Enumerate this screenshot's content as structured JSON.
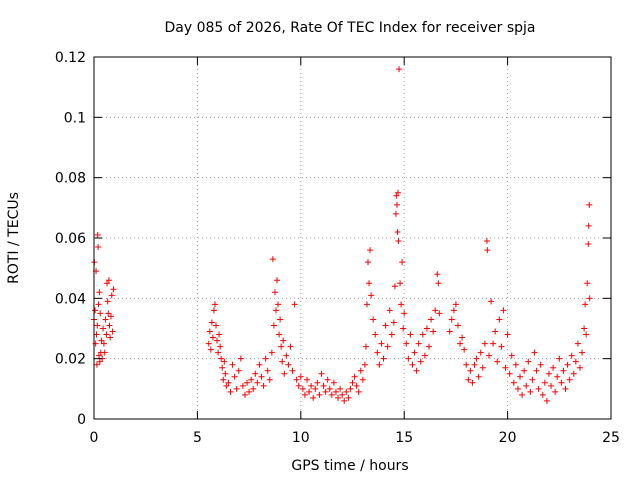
{
  "chart_data": {
    "type": "scatter",
    "title": "Day 085 of 2026, Rate Of TEC Index for receiver spja",
    "xlabel": "GPS time / hours",
    "ylabel": "ROTI / TECUs",
    "xlim": [
      0,
      25
    ],
    "ylim": [
      0,
      0.12
    ],
    "x_ticks": [
      0,
      5,
      10,
      15,
      20,
      25
    ],
    "x_tick_labels": [
      "0",
      "5",
      "10",
      "15",
      "20",
      "25"
    ],
    "y_ticks": [
      0,
      0.02,
      0.04,
      0.06,
      0.08,
      0.1,
      0.12
    ],
    "y_tick_labels": [
      "0",
      "0.02",
      "0.04",
      "0.06",
      "0.08",
      "0.1",
      "0.12"
    ],
    "grid": true,
    "marker": "plus",
    "series_color": "#ff0000",
    "series": [
      {
        "name": "ROTI",
        "points": [
          [
            0.0,
            0.033
          ],
          [
            0.02,
            0.052
          ],
          [
            0.05,
            0.036
          ],
          [
            0.08,
            0.025
          ],
          [
            0.1,
            0.049
          ],
          [
            0.12,
            0.028
          ],
          [
            0.14,
            0.018
          ],
          [
            0.16,
            0.031
          ],
          [
            0.18,
            0.061
          ],
          [
            0.2,
            0.057
          ],
          [
            0.22,
            0.038
          ],
          [
            0.24,
            0.021
          ],
          [
            0.26,
            0.042
          ],
          [
            0.28,
            0.019
          ],
          [
            0.3,
            0.035
          ],
          [
            0.33,
            0.022
          ],
          [
            0.36,
            0.026
          ],
          [
            0.4,
            0.02
          ],
          [
            0.44,
            0.03
          ],
          [
            0.48,
            0.025
          ],
          [
            0.52,
            0.022
          ],
          [
            0.56,
            0.033
          ],
          [
            0.6,
            0.028
          ],
          [
            0.63,
            0.045
          ],
          [
            0.66,
            0.039
          ],
          [
            0.69,
            0.035
          ],
          [
            0.72,
            0.046
          ],
          [
            0.75,
            0.031
          ],
          [
            0.78,
            0.027
          ],
          [
            0.82,
            0.034
          ],
          [
            0.86,
            0.041
          ],
          [
            0.9,
            0.029
          ],
          [
            0.94,
            0.043
          ],
          [
            5.55,
            0.025
          ],
          [
            5.6,
            0.029
          ],
          [
            5.65,
            0.023
          ],
          [
            5.7,
            0.032
          ],
          [
            5.75,
            0.027
          ],
          [
            5.8,
            0.036
          ],
          [
            5.85,
            0.038
          ],
          [
            5.9,
            0.031
          ],
          [
            5.95,
            0.026
          ],
          [
            6.0,
            0.022
          ],
          [
            6.05,
            0.028
          ],
          [
            6.1,
            0.024
          ],
          [
            6.15,
            0.02
          ],
          [
            6.2,
            0.017
          ],
          [
            6.25,
            0.013
          ],
          [
            6.3,
            0.019
          ],
          [
            6.35,
            0.015
          ],
          [
            6.4,
            0.011
          ],
          [
            6.5,
            0.012
          ],
          [
            6.6,
            0.009
          ],
          [
            6.7,
            0.018
          ],
          [
            6.8,
            0.014
          ],
          [
            6.9,
            0.01
          ],
          [
            7.0,
            0.016
          ],
          [
            7.1,
            0.02
          ],
          [
            7.2,
            0.011
          ],
          [
            7.3,
            0.008
          ],
          [
            7.4,
            0.012
          ],
          [
            7.5,
            0.009
          ],
          [
            7.6,
            0.013
          ],
          [
            7.7,
            0.01
          ],
          [
            7.8,
            0.015
          ],
          [
            7.9,
            0.012
          ],
          [
            8.0,
            0.018
          ],
          [
            8.1,
            0.014
          ],
          [
            8.2,
            0.011
          ],
          [
            8.3,
            0.02
          ],
          [
            8.4,
            0.016
          ],
          [
            8.5,
            0.013
          ],
          [
            8.6,
            0.022
          ],
          [
            8.65,
            0.053
          ],
          [
            8.7,
            0.031
          ],
          [
            8.75,
            0.042
          ],
          [
            8.8,
            0.036
          ],
          [
            8.85,
            0.046
          ],
          [
            8.9,
            0.038
          ],
          [
            8.95,
            0.028
          ],
          [
            9.0,
            0.033
          ],
          [
            9.05,
            0.024
          ],
          [
            9.1,
            0.019
          ],
          [
            9.15,
            0.026
          ],
          [
            9.2,
            0.015
          ],
          [
            9.3,
            0.021
          ],
          [
            9.4,
            0.018
          ],
          [
            9.5,
            0.024
          ],
          [
            9.6,
            0.016
          ],
          [
            9.7,
            0.038
          ],
          [
            9.8,
            0.013
          ],
          [
            9.9,
            0.011
          ],
          [
            10.0,
            0.014
          ],
          [
            10.1,
            0.01
          ],
          [
            10.2,
            0.008
          ],
          [
            10.3,
            0.013
          ],
          [
            10.4,
            0.009
          ],
          [
            10.5,
            0.011
          ],
          [
            10.6,
            0.007
          ],
          [
            10.7,
            0.01
          ],
          [
            10.8,
            0.012
          ],
          [
            10.9,
            0.008
          ],
          [
            11.0,
            0.015
          ],
          [
            11.1,
            0.011
          ],
          [
            11.2,
            0.009
          ],
          [
            11.3,
            0.013
          ],
          [
            11.4,
            0.01
          ],
          [
            11.5,
            0.008
          ],
          [
            11.6,
            0.012
          ],
          [
            11.7,
            0.009
          ],
          [
            11.8,
            0.007
          ],
          [
            11.9,
            0.01
          ],
          [
            12.0,
            0.008
          ],
          [
            12.1,
            0.006
          ],
          [
            12.2,
            0.009
          ],
          [
            12.3,
            0.007
          ],
          [
            12.4,
            0.01
          ],
          [
            12.5,
            0.012
          ],
          [
            12.6,
            0.014
          ],
          [
            12.7,
            0.011
          ],
          [
            12.8,
            0.009
          ],
          [
            12.9,
            0.016
          ],
          [
            13.0,
            0.013
          ],
          [
            13.1,
            0.018
          ],
          [
            13.15,
            0.024
          ],
          [
            13.2,
            0.038
          ],
          [
            13.25,
            0.052
          ],
          [
            13.3,
            0.045
          ],
          [
            13.35,
            0.056
          ],
          [
            13.4,
            0.041
          ],
          [
            13.5,
            0.033
          ],
          [
            13.6,
            0.028
          ],
          [
            13.7,
            0.022
          ],
          [
            13.8,
            0.018
          ],
          [
            13.9,
            0.025
          ],
          [
            14.0,
            0.02
          ],
          [
            14.1,
            0.031
          ],
          [
            14.2,
            0.024
          ],
          [
            14.3,
            0.036
          ],
          [
            14.4,
            0.028
          ],
          [
            14.5,
            0.032
          ],
          [
            14.55,
            0.044
          ],
          [
            14.6,
            0.068
          ],
          [
            14.62,
            0.074
          ],
          [
            14.65,
            0.071
          ],
          [
            14.68,
            0.062
          ],
          [
            14.7,
            0.075
          ],
          [
            14.72,
            0.059
          ],
          [
            14.75,
            0.116
          ],
          [
            14.8,
            0.045
          ],
          [
            14.85,
            0.038
          ],
          [
            14.9,
            0.052
          ],
          [
            14.95,
            0.03
          ],
          [
            15.0,
            0.035
          ],
          [
            15.1,
            0.025
          ],
          [
            15.2,
            0.02
          ],
          [
            15.3,
            0.028
          ],
          [
            15.4,
            0.018
          ],
          [
            15.5,
            0.022
          ],
          [
            15.6,
            0.016
          ],
          [
            15.7,
            0.025
          ],
          [
            15.8,
            0.019
          ],
          [
            15.9,
            0.028
          ],
          [
            16.0,
            0.021
          ],
          [
            16.1,
            0.03
          ],
          [
            16.2,
            0.024
          ],
          [
            16.3,
            0.033
          ],
          [
            16.4,
            0.029
          ],
          [
            16.5,
            0.036
          ],
          [
            16.6,
            0.048
          ],
          [
            16.65,
            0.045
          ],
          [
            16.7,
            0.035
          ],
          [
            17.2,
            0.029
          ],
          [
            17.3,
            0.033
          ],
          [
            17.4,
            0.036
          ],
          [
            17.5,
            0.038
          ],
          [
            17.6,
            0.031
          ],
          [
            17.7,
            0.025
          ],
          [
            17.8,
            0.027
          ],
          [
            17.9,
            0.023
          ],
          [
            18.0,
            0.018
          ],
          [
            18.1,
            0.013
          ],
          [
            18.2,
            0.016
          ],
          [
            18.3,
            0.012
          ],
          [
            18.4,
            0.018
          ],
          [
            18.5,
            0.02
          ],
          [
            18.6,
            0.014
          ],
          [
            18.7,
            0.022
          ],
          [
            18.8,
            0.017
          ],
          [
            18.9,
            0.025
          ],
          [
            19.0,
            0.059
          ],
          [
            19.02,
            0.056
          ],
          [
            19.1,
            0.021
          ],
          [
            19.2,
            0.039
          ],
          [
            19.3,
            0.025
          ],
          [
            19.4,
            0.029
          ],
          [
            19.5,
            0.019
          ],
          [
            19.6,
            0.033
          ],
          [
            19.7,
            0.024
          ],
          [
            19.8,
            0.036
          ],
          [
            19.9,
            0.017
          ],
          [
            20.0,
            0.028
          ],
          [
            20.1,
            0.015
          ],
          [
            20.2,
            0.021
          ],
          [
            20.3,
            0.012
          ],
          [
            20.4,
            0.018
          ],
          [
            20.5,
            0.01
          ],
          [
            20.6,
            0.014
          ],
          [
            20.7,
            0.008
          ],
          [
            20.8,
            0.016
          ],
          [
            20.9,
            0.011
          ],
          [
            21.0,
            0.019
          ],
          [
            21.1,
            0.009
          ],
          [
            21.2,
            0.013
          ],
          [
            21.3,
            0.022
          ],
          [
            21.4,
            0.016
          ],
          [
            21.5,
            0.01
          ],
          [
            21.6,
            0.018
          ],
          [
            21.7,
            0.008
          ],
          [
            21.8,
            0.012
          ],
          [
            21.9,
            0.006
          ],
          [
            22.0,
            0.015
          ],
          [
            22.1,
            0.011
          ],
          [
            22.2,
            0.017
          ],
          [
            22.3,
            0.009
          ],
          [
            22.4,
            0.014
          ],
          [
            22.5,
            0.02
          ],
          [
            22.6,
            0.012
          ],
          [
            22.7,
            0.016
          ],
          [
            22.8,
            0.01
          ],
          [
            22.9,
            0.018
          ],
          [
            23.0,
            0.013
          ],
          [
            23.1,
            0.021
          ],
          [
            23.2,
            0.015
          ],
          [
            23.3,
            0.019
          ],
          [
            23.4,
            0.025
          ],
          [
            23.5,
            0.017
          ],
          [
            23.6,
            0.022
          ],
          [
            23.7,
            0.03
          ],
          [
            23.75,
            0.038
          ],
          [
            23.8,
            0.028
          ],
          [
            23.85,
            0.045
          ],
          [
            23.9,
            0.058
          ],
          [
            23.92,
            0.064
          ],
          [
            23.95,
            0.071
          ],
          [
            23.97,
            0.04
          ]
        ]
      }
    ]
  }
}
